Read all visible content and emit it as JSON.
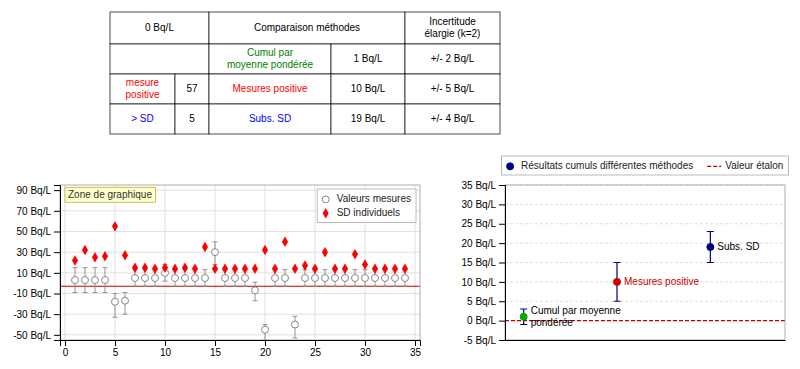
{
  "chart_data": [
    {
      "type": "table",
      "header": [
        "0 Bq/L",
        "Comparaison méthodes",
        "Incertitude\nélargie (k=2)"
      ],
      "rows": [
        [
          null,
          null,
          {
            "text": "Cumul par\nmoyenne pondérée",
            "color": "#008000"
          },
          "1 Bq/L",
          "+/- 2 Bq/L"
        ],
        [
          {
            "text": "mesure\npositive",
            "color": "red"
          },
          "57",
          {
            "text": "Mesures positive",
            "color": "red"
          },
          "10 Bq/L",
          "+/- 5 Bq/L"
        ],
        [
          {
            "text": "> SD",
            "color": "blue"
          },
          "5",
          {
            "text": "Subs. SD",
            "color": "blue"
          },
          "19 Bq/L",
          "+/- 4 Bq/L"
        ]
      ]
    },
    {
      "type": "scatter",
      "x": [
        1,
        2,
        3,
        4,
        5,
        6,
        7,
        8,
        9,
        10,
        11,
        12,
        13,
        14,
        15,
        16,
        17,
        18,
        19,
        20,
        21,
        22,
        23,
        24,
        25,
        26,
        27,
        28,
        29,
        30,
        31,
        32,
        33,
        34
      ],
      "series": [
        {
          "name": "Valeurs mesures",
          "marker": "circle-open",
          "color": "#888888",
          "values": [
            3,
            3,
            3,
            3,
            -18,
            -17,
            5,
            5,
            5,
            10,
            5,
            5,
            5,
            5,
            30,
            5,
            5,
            5,
            -7,
            -45,
            5,
            5,
            -40,
            5,
            5,
            5,
            5,
            5,
            5,
            5,
            5,
            5,
            5,
            5
          ],
          "error_low": [
            12,
            12,
            12,
            12,
            15,
            13,
            8,
            8,
            8,
            8,
            8,
            8,
            8,
            8,
            12,
            8,
            8,
            8,
            10,
            10,
            8,
            8,
            13,
            8,
            8,
            8,
            8,
            8,
            8,
            8,
            8,
            8,
            8,
            8
          ],
          "error_high": [
            12,
            12,
            12,
            12,
            8,
            8,
            8,
            8,
            8,
            8,
            8,
            8,
            8,
            8,
            10,
            8,
            8,
            8,
            8,
            5,
            8,
            8,
            8,
            8,
            8,
            8,
            8,
            8,
            8,
            8,
            8,
            8,
            8,
            8
          ]
        },
        {
          "name": "SD individuels",
          "marker": "diamond",
          "color": "red",
          "values": [
            22,
            32,
            25,
            26,
            55,
            27,
            15,
            15,
            14,
            15,
            14,
            15,
            14,
            35,
            14,
            14,
            14,
            14,
            14,
            32,
            14,
            40,
            14,
            17,
            14,
            30,
            14,
            14,
            28,
            18,
            14,
            14,
            14,
            14
          ]
        }
      ],
      "reference_line": {
        "value": -3,
        "color": "#c00000"
      },
      "xlim": [
        -0.5,
        35.5
      ],
      "xticks": [
        0,
        5,
        10,
        15,
        20,
        25,
        30,
        35
      ],
      "ylim": [
        -55,
        95
      ],
      "yticks": [
        {
          "value": -50,
          "label": "-50 Bq/L"
        },
        {
          "value": -30,
          "label": "-30 Bq/L"
        },
        {
          "value": -10,
          "label": "-10 Bq/L"
        },
        {
          "value": 10,
          "label": "10 Bq/L"
        },
        {
          "value": 30,
          "label": "30 Bq/L"
        },
        {
          "value": 50,
          "label": "50 Bq/L"
        },
        {
          "value": 70,
          "label": "70 Bq/L"
        },
        {
          "value": 90,
          "label": "90 Bq/L"
        }
      ],
      "grid": true,
      "legend": "upper right",
      "annotations": [
        "Zone de graphique"
      ]
    },
    {
      "type": "scatter",
      "categories": [
        "Cumul par moyenne\npondérée",
        "Mesures positive",
        "Subs. SD"
      ],
      "series": [
        {
          "name": "Résultats cumuls différentes méthodes",
          "marker": "circle",
          "color": "#000080",
          "colors": [
            "#00aa00",
            "#cc0000",
            "#000080"
          ],
          "label_colors": [
            "#000000",
            "#cc0000",
            "#000000"
          ],
          "values": [
            1.0,
            10.0,
            19.0
          ],
          "error": [
            2,
            5,
            4
          ]
        }
      ],
      "reference_line": {
        "name": "Valeur étalon",
        "value": 0,
        "color": "#c00000",
        "line_style": "dashed"
      },
      "ylim": [
        -5,
        35
      ],
      "yticks": [
        {
          "value": -5,
          "label": "-5 Bq/L"
        },
        {
          "value": 0,
          "label": "0 Bq/L"
        },
        {
          "value": 5,
          "label": "5 Bq/L"
        },
        {
          "value": 10,
          "label": "10 Bq/L"
        },
        {
          "value": 15,
          "label": "15 Bq/L"
        },
        {
          "value": 20,
          "label": "20 Bq/L"
        },
        {
          "value": 25,
          "label": "25 Bq/L"
        },
        {
          "value": 30,
          "label": "30 Bq/L"
        },
        {
          "value": 35,
          "label": "35 Bq/L"
        }
      ],
      "grid": "y",
      "legend": "upper center",
      "tick_labels": "y"
    }
  ]
}
